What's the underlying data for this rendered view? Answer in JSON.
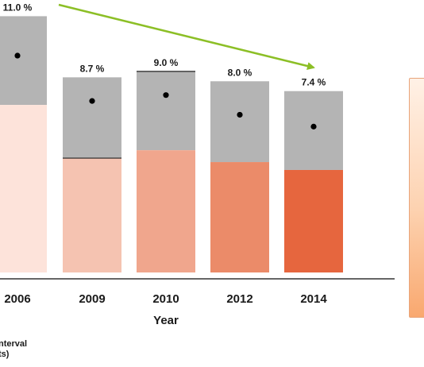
{
  "chart_data": {
    "type": "bar",
    "categories": [
      "2006",
      "2009",
      "2010",
      "2012",
      "2014"
    ],
    "values": [
      11.0,
      8.7,
      9.0,
      8.0,
      7.4
    ],
    "value_labels": [
      "11.0 %",
      "8.7 %",
      "9.0 %",
      "8.0 %",
      "7.4 %"
    ],
    "ci_lower": [
      8.5,
      5.8,
      6.2,
      5.6,
      5.2
    ],
    "ci_upper": [
      13.0,
      9.9,
      10.2,
      9.7,
      9.2
    ],
    "xlabel": "Year",
    "ylim": [
      0,
      13.5
    ],
    "bar_colors": [
      "#fde3da",
      "#f5c3b1",
      "#f0a68d",
      "#eb8b69",
      "#e6663e"
    ],
    "ci_color": "#b4b4b4",
    "trend_arrow_color": "#8cbf26",
    "legend_partial": [
      "nterval",
      "ts)"
    ]
  }
}
